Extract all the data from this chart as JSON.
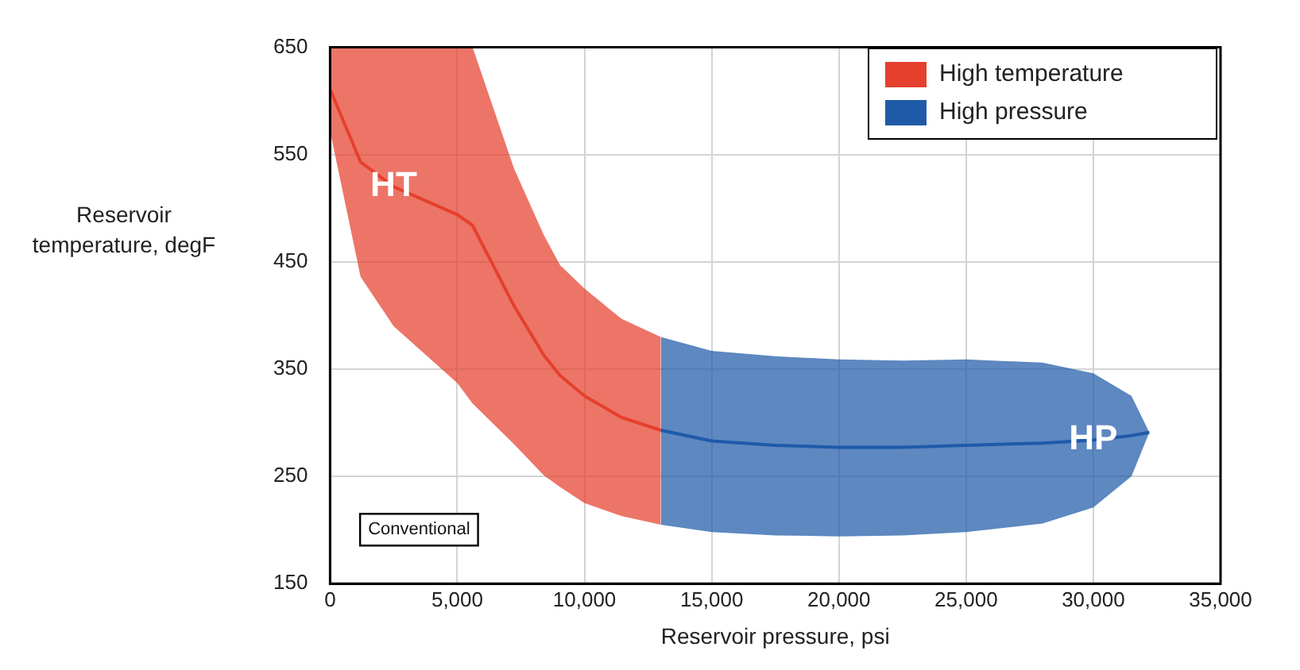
{
  "chart_data": {
    "type": "line",
    "line_style": "solid",
    "marker": "none",
    "xlabel": "Reservoir pressure, psi",
    "ylabel": "Reservoir temperature, degF",
    "xlim": [
      0,
      35000
    ],
    "ylim": [
      150,
      650
    ],
    "xticks": [
      0,
      {
        "value": 5000,
        "label": "5,000"
      },
      {
        "value": 10000,
        "label": "10,000"
      },
      {
        "value": 15000,
        "label": "15,000"
      },
      {
        "value": 20000,
        "label": "20,000"
      },
      {
        "value": 25000,
        "label": "25,000"
      },
      {
        "value": 30000,
        "label": "30,000"
      },
      {
        "value": 35000,
        "label": "35,000"
      }
    ],
    "yticks": [
      150,
      250,
      350,
      450,
      550,
      650
    ],
    "grid": true,
    "legend": "top right",
    "series": [
      {
        "name": "High temperature",
        "color": "#e5402d",
        "x": [
          0,
          1200,
          2500,
          5000,
          5600,
          7230,
          8400,
          9040,
          10000,
          11450,
          13000
        ],
        "values": [
          611,
          543,
          520,
          494,
          484,
          409,
          363,
          344,
          325,
          305,
          293
        ],
        "lower": [
          572,
          436,
          390,
          337,
          318,
          280,
          251,
          240,
          225,
          213,
          205
        ],
        "upper": [
          650,
          650,
          650,
          650,
          650,
          537,
          475,
          447,
          425,
          397,
          380
        ]
      },
      {
        "name": "High pressure",
        "color": "#1f5aa8",
        "x": [
          13000,
          15000,
          17500,
          20000,
          22500,
          25000,
          28000,
          30000,
          31500,
          32200
        ],
        "values": [
          293,
          283,
          279,
          277,
          277,
          279,
          281,
          284,
          288,
          291
        ],
        "lower": [
          205,
          198,
          195,
          194,
          195,
          198,
          206,
          221,
          250,
          291
        ],
        "upper": [
          380,
          367,
          362,
          359,
          358,
          359,
          356,
          346,
          325,
          291
        ]
      }
    ],
    "annotations": [
      "HT",
      "HP",
      "Conventional"
    ]
  }
}
